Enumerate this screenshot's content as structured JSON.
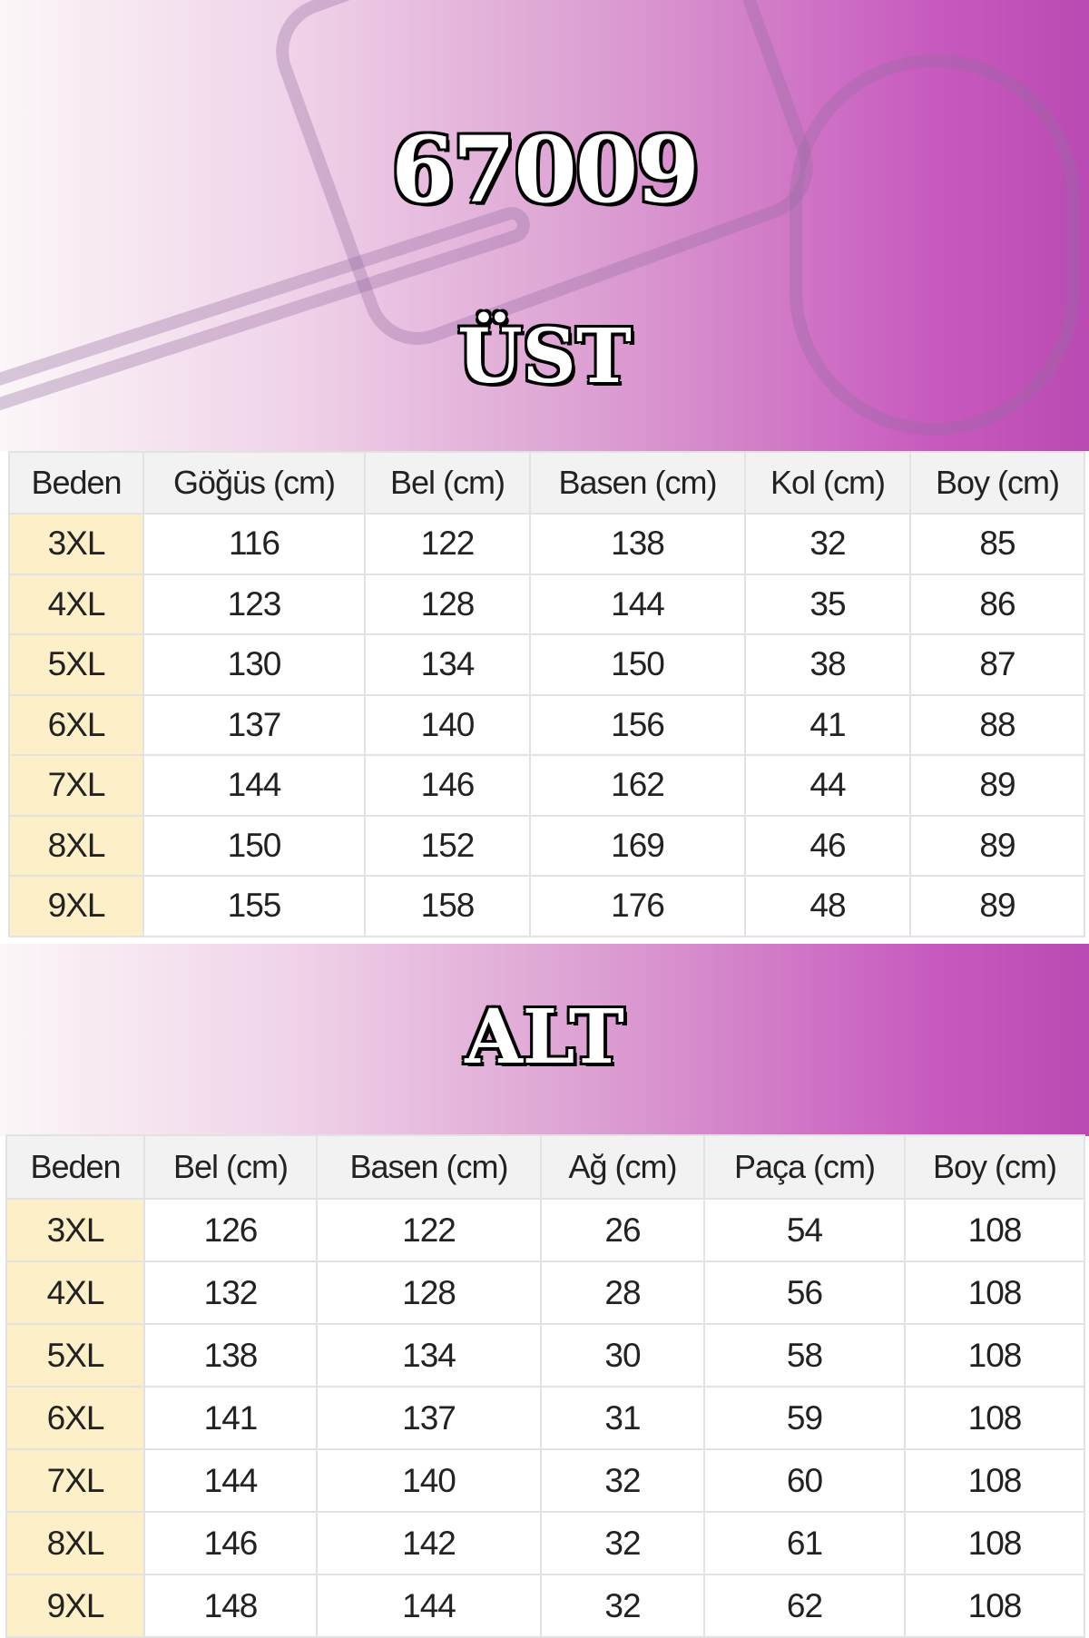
{
  "model_code": "67009",
  "top": {
    "title": "ÜST",
    "headers": [
      "Beden",
      "Göğüs (cm)",
      "Bel (cm)",
      "Basen (cm)",
      "Kol (cm)",
      "Boy (cm)"
    ],
    "rows": [
      [
        "3XL",
        "116",
        "122",
        "138",
        "32",
        "85"
      ],
      [
        "4XL",
        "123",
        "128",
        "144",
        "35",
        "86"
      ],
      [
        "5XL",
        "130",
        "134",
        "150",
        "38",
        "87"
      ],
      [
        "6XL",
        "137",
        "140",
        "156",
        "41",
        "88"
      ],
      [
        "7XL",
        "144",
        "146",
        "162",
        "44",
        "89"
      ],
      [
        "8XL",
        "150",
        "152",
        "169",
        "46",
        "89"
      ],
      [
        "9XL",
        "155",
        "158",
        "176",
        "48",
        "89"
      ]
    ]
  },
  "bottom": {
    "title": "ALT",
    "headers": [
      "Beden",
      "Bel (cm)",
      "Basen (cm)",
      "Ağ (cm)",
      "Paça (cm)",
      "Boy (cm)"
    ],
    "rows": [
      [
        "3XL",
        "126",
        "122",
        "26",
        "54",
        "108"
      ],
      [
        "4XL",
        "132",
        "128",
        "28",
        "56",
        "108"
      ],
      [
        "5XL",
        "138",
        "134",
        "30",
        "58",
        "108"
      ],
      [
        "6XL",
        "141",
        "137",
        "31",
        "59",
        "108"
      ],
      [
        "7XL",
        "144",
        "140",
        "32",
        "60",
        "108"
      ],
      [
        "8XL",
        "146",
        "142",
        "32",
        "61",
        "108"
      ],
      [
        "9XL",
        "148",
        "144",
        "32",
        "62",
        "108"
      ]
    ]
  }
}
